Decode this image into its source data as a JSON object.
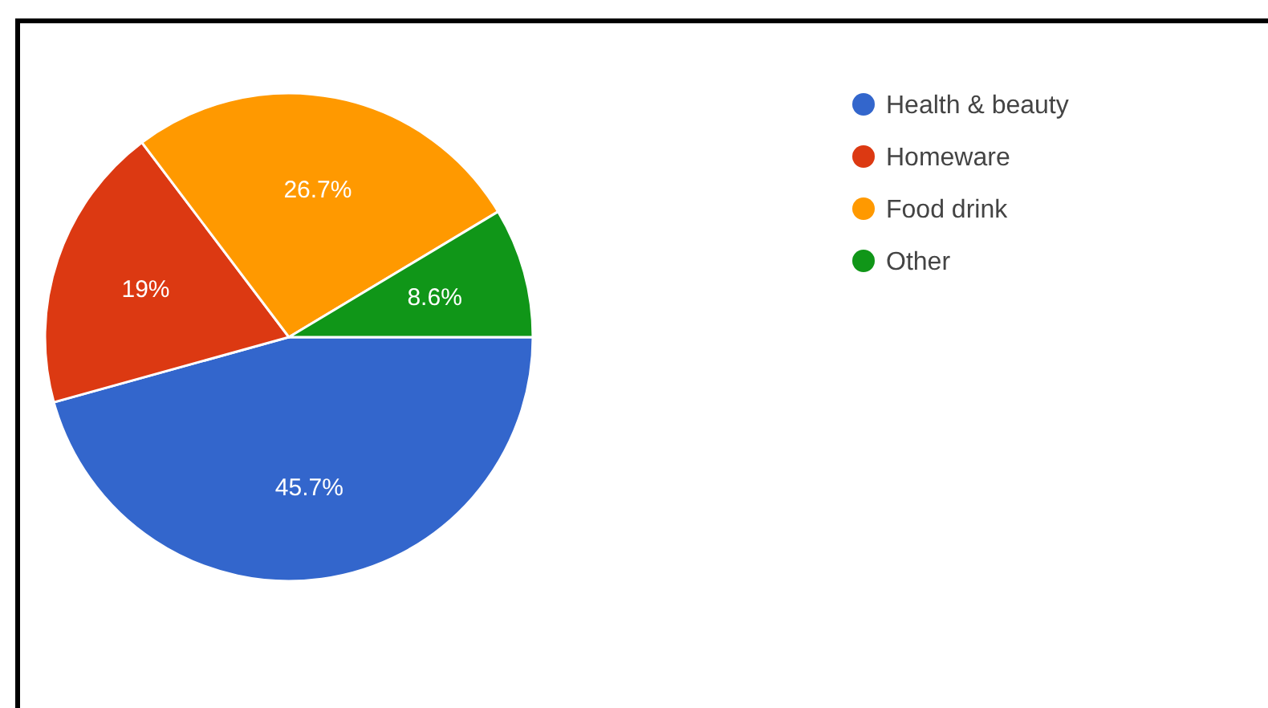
{
  "chart_data": {
    "type": "pie",
    "categories": [
      "Health & beauty",
      "Homeware",
      "Food drink",
      "Other"
    ],
    "values": [
      45.7,
      19,
      26.7,
      8.6
    ],
    "value_labels": [
      "45.7%",
      "19%",
      "26.7%",
      "8.6%"
    ],
    "colors": [
      "#3366cc",
      "#dc3912",
      "#ff9900",
      "#109618"
    ],
    "legend": "right"
  }
}
